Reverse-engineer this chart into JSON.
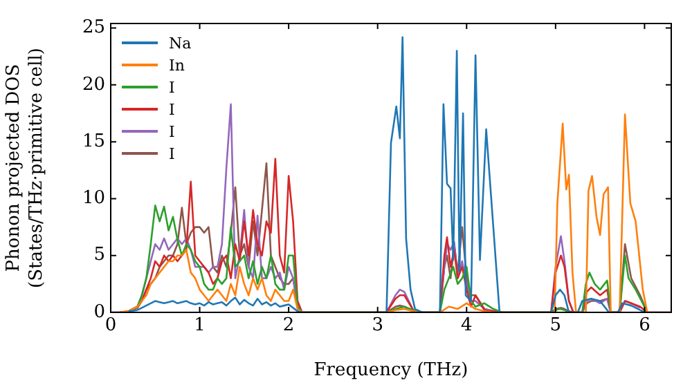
{
  "chart_data": {
    "type": "line",
    "xlabel": "Frequency (THz)",
    "ylabel": "Phonon projected DOS\n(States/THz·primitive cell)",
    "xlim": [
      0,
      6.3
    ],
    "ylim": [
      0,
      25.4
    ],
    "xticks": [
      0,
      1,
      2,
      3,
      4,
      5,
      6
    ],
    "yticks": [
      0,
      5,
      10,
      15,
      20,
      25
    ],
    "grid": false,
    "legend": "top left",
    "marker": "none",
    "line_style": "solid",
    "series": [
      {
        "name": "Na",
        "color": "#1f77b4",
        "x": [
          0.2,
          0.3,
          0.35,
          0.4,
          0.45,
          0.5,
          0.55,
          0.6,
          0.65,
          0.7,
          0.75,
          0.8,
          0.85,
          0.9,
          0.95,
          1.0,
          1.05,
          1.1,
          1.15,
          1.2,
          1.25,
          1.3,
          1.35,
          1.4,
          1.45,
          1.5,
          1.55,
          1.6,
          1.65,
          1.7,
          1.75,
          1.8,
          1.85,
          1.9,
          1.95,
          2.0,
          2.05,
          2.1,
          2.15,
          3.1,
          3.15,
          3.21,
          3.25,
          3.28,
          3.32,
          3.37,
          3.42,
          3.5,
          3.7,
          3.74,
          3.78,
          3.82,
          3.85,
          3.89,
          3.92,
          3.96,
          3.99,
          4.05,
          4.1,
          4.15,
          4.22,
          4.29,
          4.37,
          4.45,
          4.95,
          5.0,
          5.05,
          5.1,
          5.15,
          5.25,
          5.3,
          5.4,
          5.5,
          5.6,
          5.7,
          5.75,
          5.85,
          5.95,
          6.0
        ],
        "values": [
          0.1,
          0.2,
          0.4,
          0.6,
          0.8,
          1.0,
          0.9,
          0.8,
          0.9,
          1.0,
          0.8,
          0.9,
          1.0,
          0.8,
          0.7,
          0.8,
          0.6,
          0.9,
          0.7,
          0.8,
          0.9,
          0.6,
          1.0,
          1.3,
          0.7,
          1.1,
          0.8,
          0.6,
          1.2,
          0.7,
          0.9,
          0.6,
          0.8,
          0.5,
          0.6,
          0.7,
          0.4,
          0.1,
          0,
          0,
          14.9,
          18.1,
          15.3,
          24.2,
          6.5,
          2,
          0.3,
          0,
          0,
          18.3,
          11.3,
          10.9,
          4.6,
          23,
          3.6,
          17.5,
          1.5,
          1,
          22.6,
          4.6,
          16.1,
          8.6,
          0,
          0,
          0,
          1.5,
          2,
          1.5,
          0,
          0,
          1,
          1.2,
          1,
          0,
          0,
          0.8,
          0.6,
          0.2,
          0
        ]
      },
      {
        "name": "In",
        "color": "#ff7f0e",
        "x": [
          0.1,
          0.2,
          0.3,
          0.35,
          0.4,
          0.45,
          0.5,
          0.55,
          0.6,
          0.65,
          0.7,
          0.75,
          0.8,
          0.85,
          0.9,
          0.95,
          1.0,
          1.05,
          1.1,
          1.15,
          1.2,
          1.25,
          1.3,
          1.35,
          1.4,
          1.45,
          1.5,
          1.55,
          1.6,
          1.65,
          1.7,
          1.75,
          1.8,
          1.85,
          1.9,
          1.95,
          2.0,
          2.05,
          2.1,
          2.15,
          3.1,
          3.2,
          3.3,
          3.4,
          3.5,
          3.7,
          3.8,
          3.9,
          4.0,
          4.1,
          4.2,
          4.3,
          4.95,
          4.99,
          5.02,
          5.08,
          5.12,
          5.15,
          5.19,
          5.23,
          5.34,
          5.37,
          5.41,
          5.46,
          5.5,
          5.54,
          5.59,
          5.62,
          5.72,
          5.78,
          5.84,
          5.9,
          5.98,
          6.03
        ],
        "values": [
          0,
          0.1,
          0.5,
          1,
          1.5,
          2.5,
          3,
          3.5,
          4,
          4.5,
          4.5,
          5,
          5,
          5.5,
          3.5,
          3,
          2,
          1.5,
          1,
          1.5,
          2,
          1.5,
          1,
          2.5,
          1.5,
          4,
          2.5,
          1.5,
          3,
          2,
          3,
          1.5,
          1,
          2,
          1.5,
          1,
          1,
          2,
          0.3,
          0,
          0,
          0.2,
          0.3,
          0.1,
          0,
          0,
          0.5,
          0.3,
          0.8,
          0.3,
          0.1,
          0,
          0,
          0,
          9.6,
          16.6,
          10.8,
          12.1,
          3.5,
          0,
          0,
          10.7,
          12.0,
          8.4,
          6.8,
          10.4,
          11.0,
          0,
          0,
          17.4,
          9.6,
          8.0,
          2,
          0
        ]
      },
      {
        "name": "I",
        "color": "#2ca02c",
        "x": [
          0.2,
          0.3,
          0.35,
          0.4,
          0.45,
          0.5,
          0.55,
          0.6,
          0.65,
          0.7,
          0.75,
          0.8,
          0.85,
          0.9,
          0.95,
          1.0,
          1.05,
          1.1,
          1.15,
          1.2,
          1.25,
          1.3,
          1.35,
          1.4,
          1.45,
          1.5,
          1.55,
          1.6,
          1.65,
          1.7,
          1.75,
          1.8,
          1.85,
          1.9,
          1.95,
          2.0,
          2.05,
          2.1,
          2.15,
          3.1,
          3.2,
          3.3,
          3.4,
          3.5,
          3.7,
          3.75,
          3.8,
          3.85,
          3.9,
          3.95,
          4.0,
          4.05,
          4.1,
          4.2,
          4.3,
          4.4,
          4.95,
          5.0,
          5.05,
          5.1,
          5.15,
          5.3,
          5.34,
          5.38,
          5.44,
          5.5,
          5.58,
          5.62,
          5.72,
          5.78,
          5.82,
          5.9,
          5.98,
          6.03
        ],
        "values": [
          0.1,
          0.5,
          1.5,
          3,
          6,
          9.4,
          8,
          9.3,
          7.2,
          8.4,
          6.4,
          5,
          6,
          5.5,
          4.5,
          4,
          2.5,
          2,
          2,
          3,
          2.5,
          3,
          7.5,
          4,
          4.5,
          5,
          3,
          4.5,
          2.5,
          4,
          3,
          5,
          2.5,
          2,
          2,
          5,
          5,
          0.5,
          0,
          0,
          0.3,
          0.5,
          0.2,
          0,
          0,
          2,
          3,
          4,
          2.5,
          3,
          4,
          1,
          0.5,
          0.8,
          0.3,
          0,
          0,
          0.2,
          0.3,
          0.2,
          0,
          0,
          2.5,
          3.5,
          2.5,
          2,
          2.8,
          0,
          0,
          5,
          3,
          2,
          0.8,
          0
        ]
      },
      {
        "name": "I",
        "color": "#d62728",
        "x": [
          0.2,
          0.3,
          0.35,
          0.4,
          0.45,
          0.5,
          0.55,
          0.6,
          0.65,
          0.7,
          0.75,
          0.8,
          0.85,
          0.9,
          0.95,
          1.0,
          1.05,
          1.1,
          1.15,
          1.2,
          1.25,
          1.3,
          1.35,
          1.4,
          1.45,
          1.5,
          1.55,
          1.6,
          1.65,
          1.7,
          1.75,
          1.8,
          1.85,
          1.9,
          1.95,
          2.0,
          2.05,
          2.1,
          2.15,
          3.1,
          3.2,
          3.25,
          3.3,
          3.4,
          3.5,
          3.7,
          3.75,
          3.78,
          3.82,
          3.86,
          3.9,
          3.95,
          4.0,
          4.05,
          4.1,
          4.2,
          4.3,
          4.4,
          4.95,
          5.0,
          5.06,
          5.1,
          5.15,
          5.2,
          5.3,
          5.35,
          5.4,
          5.5,
          5.58,
          5.62,
          5.72,
          5.78,
          5.85,
          5.95,
          6.03,
          6.3
        ],
        "values": [
          0.1,
          0.5,
          1,
          2,
          3,
          4.5,
          4,
          5,
          4.5,
          5,
          4.5,
          5,
          5.5,
          11.5,
          5,
          4.5,
          4,
          3.5,
          2.5,
          3,
          4.5,
          5,
          3,
          6,
          4.5,
          8,
          5,
          9,
          6,
          5,
          8,
          7,
          13.5,
          5,
          3.5,
          12,
          8,
          1,
          0,
          0,
          1.2,
          1.5,
          1.5,
          0.2,
          0,
          0,
          5,
          6.6,
          4,
          5.5,
          3,
          4,
          2,
          0.5,
          1.5,
          0.2,
          0.1,
          0,
          0,
          3.5,
          5,
          4,
          1,
          0,
          0,
          1.8,
          2.2,
          1.5,
          2,
          0,
          0,
          1,
          0.8,
          0.5,
          0,
          0
        ]
      },
      {
        "name": "I",
        "color": "#9467bd",
        "x": [
          0,
          0.1,
          0.2,
          0.3,
          0.35,
          0.4,
          0.45,
          0.5,
          0.55,
          0.6,
          0.65,
          0.7,
          0.75,
          0.8,
          0.85,
          0.9,
          0.95,
          1.0,
          1.05,
          1.1,
          1.15,
          1.2,
          1.25,
          1.3,
          1.35,
          1.4,
          1.45,
          1.5,
          1.55,
          1.6,
          1.65,
          1.7,
          1.75,
          1.8,
          1.85,
          1.9,
          1.95,
          2.0,
          2.05,
          2.1,
          2.15,
          3.1,
          3.2,
          3.25,
          3.3,
          3.4,
          3.5,
          3.7,
          3.75,
          3.78,
          3.82,
          3.86,
          3.9,
          3.95,
          4.0,
          4.05,
          4.1,
          4.2,
          4.3,
          4.4,
          4.95,
          5.0,
          5.06,
          5.1,
          5.15,
          5.2,
          5.3,
          5.35,
          5.4,
          5.5,
          5.58,
          5.62,
          5.72,
          5.78,
          5.85,
          5.95
        ],
        "values": [
          0,
          0,
          0.1,
          0.5,
          1.5,
          3,
          4.5,
          6,
          5.5,
          6.5,
          5.5,
          6,
          6.5,
          6,
          6.5,
          5.5,
          4,
          4,
          4,
          3.5,
          4,
          4,
          6,
          12.7,
          18.3,
          3,
          5,
          9,
          4,
          3,
          8.5,
          3,
          3,
          4,
          3,
          3.5,
          2,
          4,
          3,
          0.5,
          0,
          0,
          1.5,
          2,
          1.8,
          0.2,
          0,
          0,
          4,
          6,
          5.5,
          6.2,
          3,
          4.5,
          2.5,
          1,
          1,
          0.3,
          0.1,
          0,
          0,
          4,
          6.7,
          4.5,
          1,
          0,
          0,
          1,
          1.2,
          0.8,
          1.2,
          0,
          0,
          1,
          0.8,
          0.4
        ]
      },
      {
        "name": "I",
        "color": "#8c564b",
        "x": [
          0,
          0.1,
          0.2,
          0.3,
          0.35,
          0.4,
          0.45,
          0.5,
          0.55,
          0.6,
          0.65,
          0.7,
          0.75,
          0.8,
          0.85,
          0.9,
          0.95,
          1.0,
          1.05,
          1.1,
          1.15,
          1.2,
          1.25,
          1.3,
          1.35,
          1.4,
          1.45,
          1.5,
          1.55,
          1.6,
          1.65,
          1.7,
          1.75,
          1.8,
          1.85,
          1.9,
          1.95,
          2.0,
          2.05,
          2.1,
          2.15,
          3.1,
          3.2,
          3.25,
          3.3,
          3.4,
          3.5,
          3.7,
          3.75,
          3.78,
          3.82,
          3.86,
          3.9,
          3.95,
          4.0,
          4.05,
          4.1,
          4.2,
          4.3,
          4.4,
          4.95,
          5.0,
          5.06,
          5.1,
          5.15,
          5.2,
          5.3,
          5.35,
          5.4,
          5.5,
          5.58,
          5.62,
          5.72,
          5.78,
          5.85,
          5.95,
          6.03,
          6.3
        ],
        "values": [
          0,
          0,
          0.1,
          0.4,
          1,
          2,
          2.5,
          3,
          4,
          4.5,
          5,
          5,
          6,
          9.2,
          6,
          7,
          7.5,
          7.5,
          7,
          7.5,
          4,
          3.5,
          5,
          4,
          7,
          11,
          5,
          6,
          4,
          8,
          5,
          9,
          13.1,
          5,
          4,
          3,
          2.5,
          2.5,
          3,
          0.5,
          0,
          0,
          0.5,
          0.6,
          0.5,
          0.1,
          0,
          0,
          4,
          5,
          3,
          6,
          3.5,
          7.5,
          3,
          1.5,
          1.5,
          0.3,
          0.1,
          0,
          0,
          0.3,
          0.4,
          0.3,
          0.1,
          0,
          0,
          0.8,
          1,
          1,
          1.2,
          0,
          0,
          6,
          3,
          1.5,
          0,
          0
        ]
      }
    ]
  }
}
